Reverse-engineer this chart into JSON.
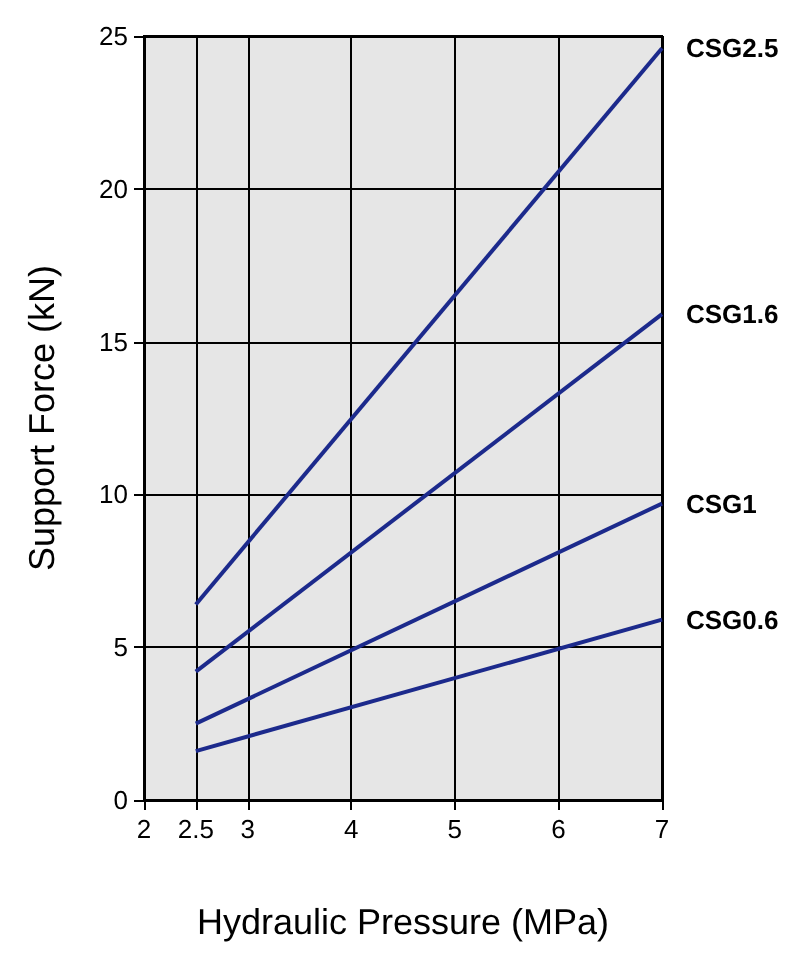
{
  "chart_data": {
    "type": "line",
    "xlabel": "Hydraulic Pressure (MPa)",
    "ylabel": "Support Force (kN)",
    "x": [
      2.5,
      7
    ],
    "series": [
      {
        "name": "CSG2.5",
        "color": "#1c2a8c",
        "values": [
          6.4,
          24.6
        ]
      },
      {
        "name": "CSG1.6",
        "color": "#1c2a8c",
        "values": [
          4.2,
          15.9
        ]
      },
      {
        "name": "CSG1",
        "color": "#1c2a8c",
        "values": [
          2.5,
          9.7
        ]
      },
      {
        "name": "CSG0.6",
        "color": "#1c2a8c",
        "values": [
          1.6,
          5.9
        ]
      }
    ],
    "xlim": [
      2,
      7
    ],
    "xticks": [
      2,
      2.5,
      3,
      4,
      5,
      6,
      7
    ],
    "ylim": [
      0,
      25
    ],
    "yticks": [
      0,
      5,
      10,
      15,
      20,
      25
    ],
    "grid": true,
    "legend": false,
    "marker": "none",
    "line_style": "solid"
  }
}
